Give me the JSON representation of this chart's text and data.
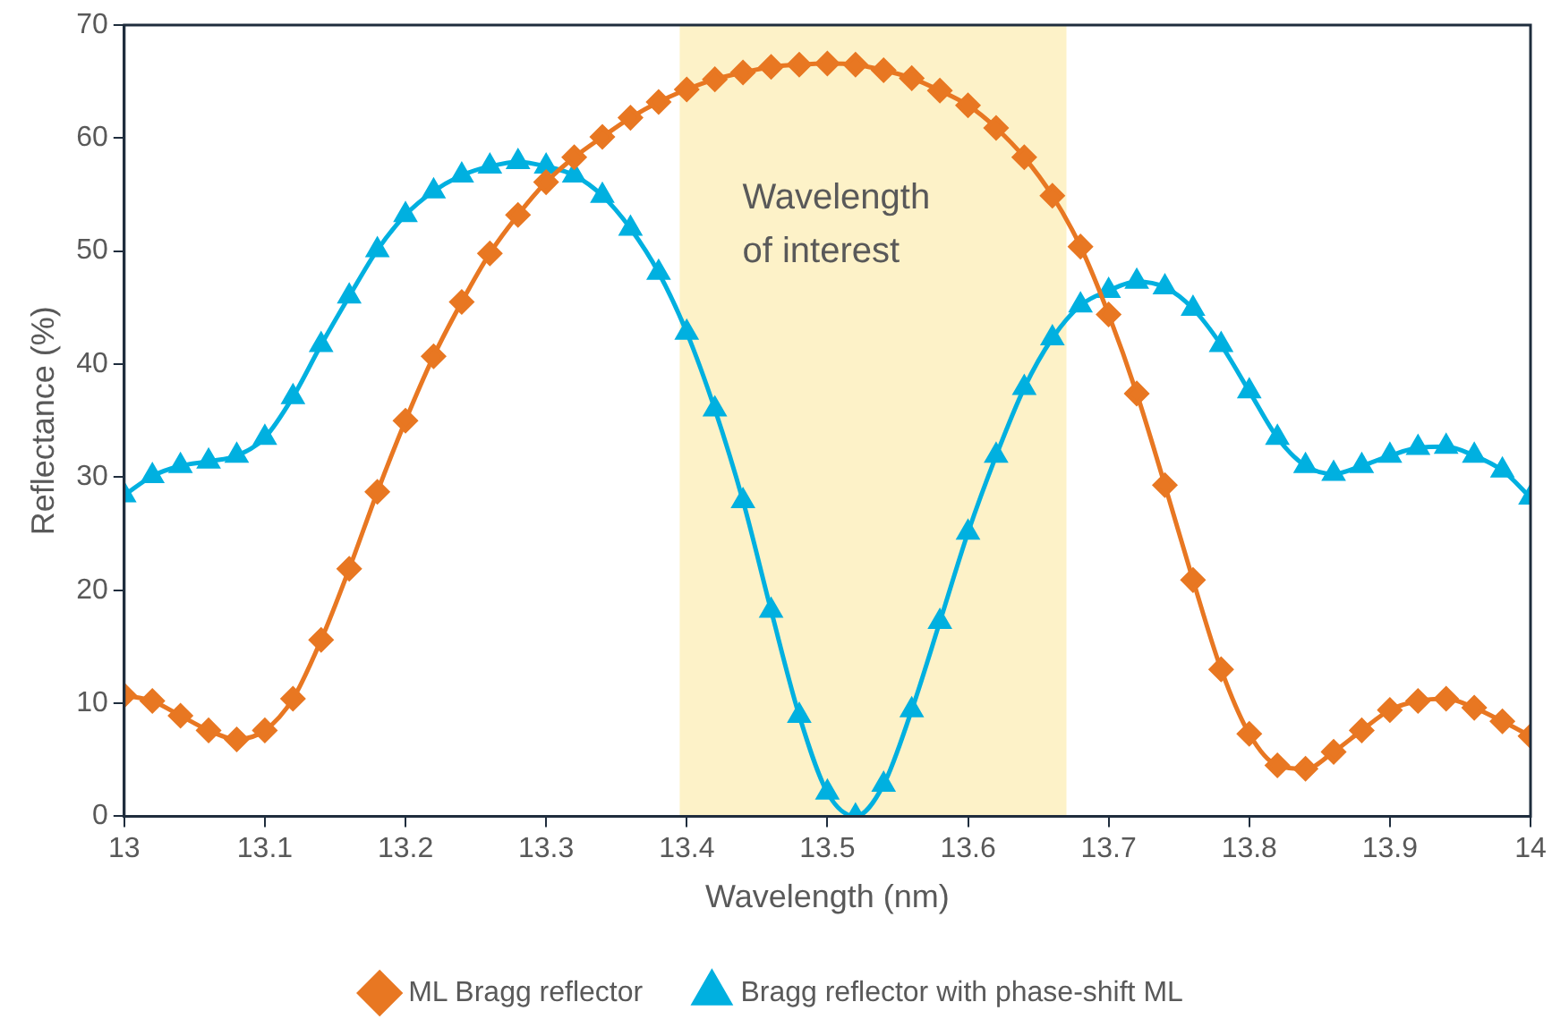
{
  "chart_data": {
    "type": "line",
    "xlabel": "Wavelength (nm)",
    "ylabel": "Reflectance (%)",
    "x": [
      13,
      13.02,
      13.04,
      13.06,
      13.08,
      13.1,
      13.12,
      13.14,
      13.16,
      13.18,
      13.2,
      13.22,
      13.24,
      13.26,
      13.28,
      13.3,
      13.32,
      13.34,
      13.36,
      13.38,
      13.4,
      13.42,
      13.44,
      13.46,
      13.48,
      13.5,
      13.52,
      13.54,
      13.56,
      13.58,
      13.6,
      13.62,
      13.64,
      13.66,
      13.68,
      13.7,
      13.72,
      13.74,
      13.76,
      13.78,
      13.8,
      13.82,
      13.84,
      13.86,
      13.88,
      13.9,
      13.92,
      13.94,
      13.96,
      13.98,
      14
    ],
    "series": [
      {
        "name": "ML Bragg reflector",
        "color": "#e87722",
        "marker": "diamond",
        "values": [
          10.7,
          10.2,
          8.9,
          7.6,
          6.8,
          7.6,
          10.4,
          15.6,
          21.9,
          28.7,
          35.0,
          40.7,
          45.5,
          49.8,
          53.2,
          56.1,
          58.3,
          60.1,
          61.8,
          63.2,
          64.3,
          65.2,
          65.8,
          66.3,
          66.5,
          66.6,
          66.5,
          66.0,
          65.3,
          64.2,
          62.9,
          60.9,
          58.3,
          54.9,
          50.4,
          44.4,
          37.4,
          29.3,
          20.9,
          13.0,
          7.3,
          4.5,
          4.2,
          5.7,
          7.6,
          9.4,
          10.2,
          10.4,
          9.6,
          8.4,
          7.1
        ]
      },
      {
        "name": "Bragg reflector with phase-shift ML",
        "color": "#00b0e0",
        "marker": "triangle",
        "values": [
          28.4,
          30.1,
          31.0,
          31.4,
          31.9,
          33.5,
          37.1,
          41.7,
          46.0,
          50.1,
          53.2,
          55.3,
          56.7,
          57.5,
          57.9,
          57.5,
          56.7,
          54.9,
          52.0,
          48.1,
          42.8,
          36.0,
          27.9,
          18.2,
          8.9,
          2.1,
          0,
          2.8,
          9.4,
          17.2,
          25.1,
          31.9,
          37.9,
          42.3,
          45.2,
          46.5,
          47.3,
          46.8,
          44.9,
          41.7,
          37.6,
          33.5,
          31.0,
          30.3,
          31.0,
          31.9,
          32.6,
          32.7,
          31.9,
          30.6,
          28.2
        ]
      }
    ],
    "xlim": [
      13,
      14
    ],
    "xticks": [
      13,
      13.1,
      13.2,
      13.3,
      13.4,
      13.5,
      13.6,
      13.7,
      13.8,
      13.9,
      14
    ],
    "ylim": [
      0,
      70
    ],
    "yticks": [
      0,
      10,
      20,
      30,
      40,
      50,
      60,
      70
    ],
    "bands": [
      {
        "axis": "x",
        "from": 13.395,
        "to": 13.67,
        "label": "Wavelength of interest",
        "color": "#fdf2c8"
      }
    ],
    "grid": false,
    "legend": "bottom",
    "line_style": "solid"
  }
}
